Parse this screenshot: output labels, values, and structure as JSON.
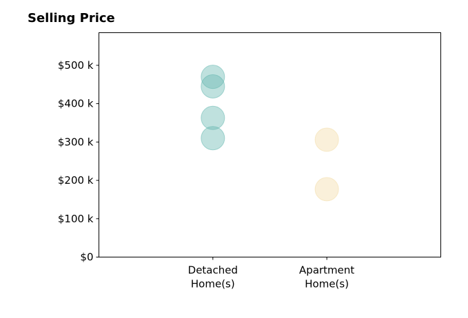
{
  "chart_data": {
    "type": "scatter",
    "title": "Selling Price",
    "xlabel": "",
    "ylabel": "",
    "categories": [
      "Detached\nHome(s)",
      "Apartment\nHome(s)"
    ],
    "x_range": [
      -1,
      2
    ],
    "ylim": [
      0,
      585000
    ],
    "y_ticks": [
      0,
      100000,
      200000,
      300000,
      400000,
      500000
    ],
    "y_tick_labels": [
      "$0",
      "$100 k",
      "$200 k",
      "$300 k",
      "$400 k",
      "$500 k"
    ],
    "grid": false,
    "series": [
      {
        "category": "Detached\nHome(s)",
        "color": "#66b8b0",
        "values": [
          470000,
          445000,
          363000,
          310000
        ]
      },
      {
        "category": "Apartment\nHome(s)",
        "color": "#f3dca8",
        "values": [
          306000,
          177000
        ]
      }
    ]
  }
}
